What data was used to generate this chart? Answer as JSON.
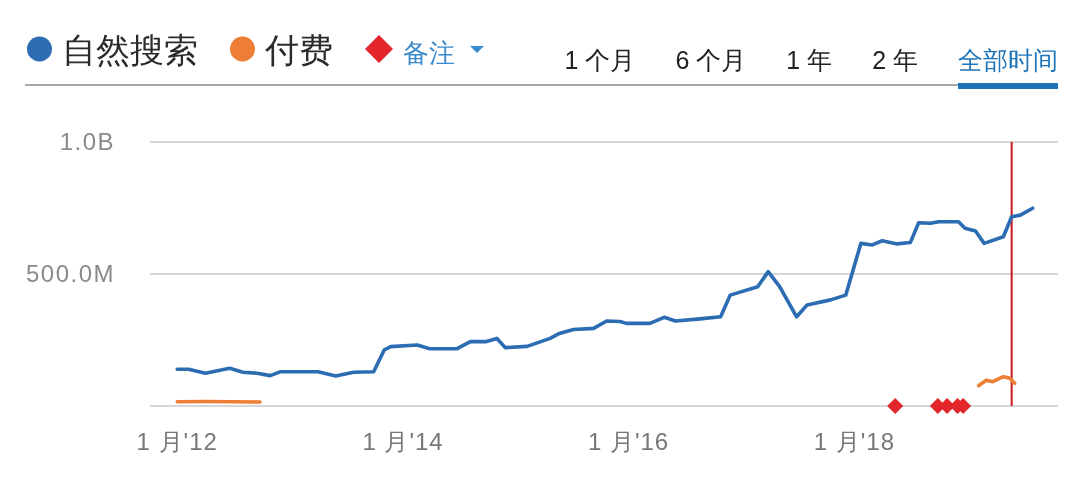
{
  "chart_data": {
    "type": "line",
    "xlim": [
      "2011-10-05",
      "2019-10-22"
    ],
    "xticks": [
      {
        "value": "2012-01-01",
        "label": "1 月'12"
      },
      {
        "value": "2014-01-01",
        "label": "1 月'14"
      },
      {
        "value": "2016-01-01",
        "label": "1 月'16"
      },
      {
        "value": "2018-01-01",
        "label": "1 月'18"
      }
    ],
    "ylim": [
      0,
      1000000000
    ],
    "yticks": [
      {
        "value": 0,
        "label": null
      },
      {
        "value": 500000000,
        "label": "500.0M"
      },
      {
        "value": 1000000000,
        "label": "1.0B"
      }
    ],
    "grid": "y",
    "legend": "top left",
    "series": [
      {
        "name": "自然搜索",
        "color": "#2b6cb3",
        "x": [
          "2012-01-01",
          "2012-02-07",
          "2012-04-01",
          "2012-06-19",
          "2012-08-01",
          "2012-09-16",
          "2012-10-28",
          "2012-12-01",
          "2013-04-01",
          "2013-05-28",
          "2013-07-25",
          "2013-09-28",
          "2013-11-01",
          "2013-11-22",
          "2014-02-16",
          "2014-03-28",
          "2014-06-25",
          "2014-08-07",
          "2014-09-28",
          "2014-11-01",
          "2014-11-28",
          "2015-02-07",
          "2015-04-22",
          "2015-05-22",
          "2015-07-07",
          "2015-09-10",
          "2015-10-22",
          "2015-12-04",
          "2015-12-25",
          "2016-03-10",
          "2016-04-25",
          "2016-06-01",
          "2016-08-19",
          "2016-10-25",
          "2016-11-25",
          "2017-02-22",
          "2017-03-28",
          "2017-05-04",
          "2017-06-28",
          "2017-08-01",
          "2017-10-16",
          "2017-12-04",
          "2018-01-22",
          "2018-02-28",
          "2018-04-01",
          "2018-05-19",
          "2018-07-01",
          "2018-07-28",
          "2018-09-04",
          "2018-10-01",
          "2018-12-04",
          "2018-12-25",
          "2019-01-28",
          "2019-02-25",
          "2019-04-28",
          "2019-05-25",
          "2019-06-22",
          "2019-08-01"
        ],
        "values": [
          139000000,
          139000000,
          124000000,
          143000000,
          128000000,
          124000000,
          115000000,
          130000000,
          130000000,
          114000000,
          128000000,
          130000000,
          212000000,
          225000000,
          231000000,
          217000000,
          217000000,
          244000000,
          244000000,
          256000000,
          221000000,
          226000000,
          256000000,
          275000000,
          290000000,
          294000000,
          322000000,
          320000000,
          313000000,
          313000000,
          336000000,
          322000000,
          330000000,
          338000000,
          420000000,
          452000000,
          509000000,
          452000000,
          338000000,
          383000000,
          402000000,
          420000000,
          616000000,
          610000000,
          626000000,
          614000000,
          619000000,
          694000000,
          692000000,
          698000000,
          698000000,
          673000000,
          663000000,
          616000000,
          641000000,
          717000000,
          723000000,
          749000000
        ]
      },
      {
        "name": "付费",
        "color": "#ee7d36",
        "x": [
          "2012-01-01",
          "2012-04-01",
          "2012-07-01",
          "2012-09-25"
        ],
        "values": [
          16000000,
          17000000,
          16000000,
          15000000
        ]
      },
      {
        "name": "备注",
        "type": "scatter",
        "marker": "diamond",
        "color": "#e3262b",
        "x": [
          "2018-05-13",
          "2018-09-28",
          "2018-10-28",
          "2018-12-01",
          "2018-12-19"
        ],
        "values": [
          0,
          0,
          0,
          0,
          0
        ]
      },
      {
        "color": "#ee7d36",
        "x": [
          "2019-02-07",
          "2019-03-04",
          "2019-03-25",
          "2019-04-28",
          "2019-05-19",
          "2019-06-04"
        ],
        "values": [
          77000000,
          98000000,
          92000000,
          111000000,
          105000000,
          86000000
        ]
      }
    ],
    "ref_lines": [
      {
        "axis": "x",
        "value": "2019-05-25",
        "color": "#c8161d"
      }
    ],
    "annotations": [
      "1 个月",
      "6 个月",
      "1 年",
      "2 年",
      "全部时间"
    ]
  }
}
